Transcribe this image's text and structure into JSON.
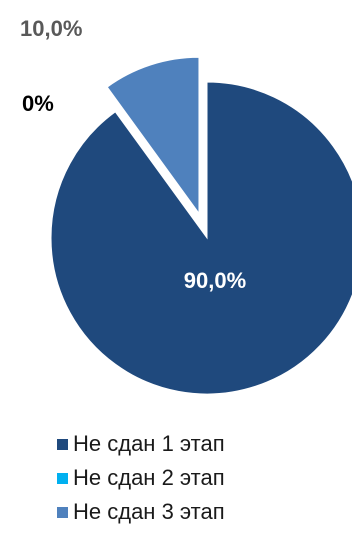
{
  "chart_data": {
    "type": "pie",
    "title": "",
    "categories": [
      "Не сдан 1 этап",
      "Не сдан 2 этап",
      "Не сдан 3 этап"
    ],
    "values": [
      90.0,
      0.0,
      10.0
    ],
    "data_labels": [
      "90,0%",
      "0%",
      "10,0%"
    ],
    "colors": [
      "#1F497D",
      "#00B0F0",
      "#4F81BD"
    ],
    "exploded_slices": [
      "Не сдан 3 этап"
    ],
    "legend_position": "bottom"
  }
}
